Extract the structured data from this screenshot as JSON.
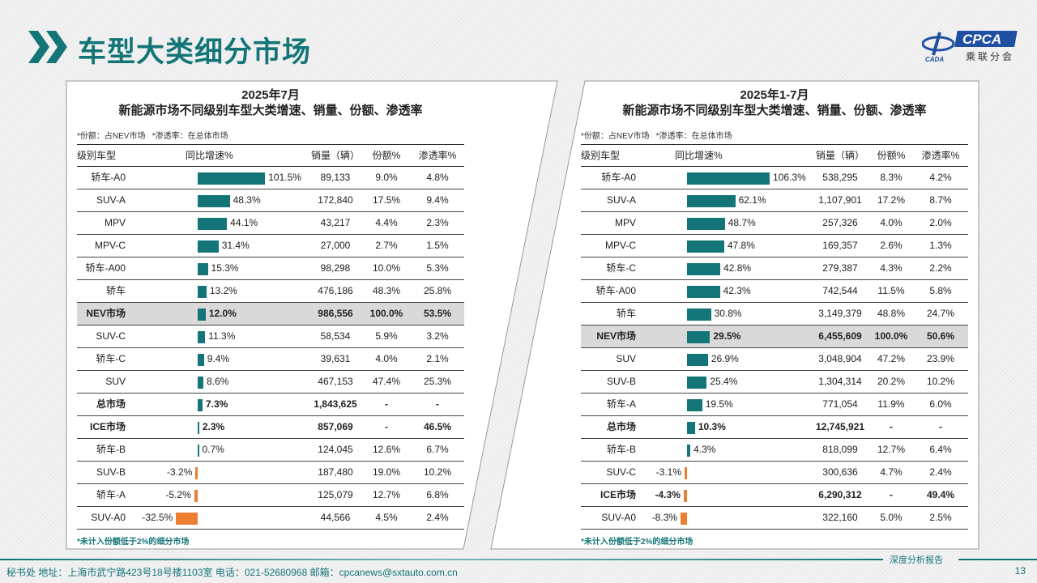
{
  "header": {
    "title": "车型大类细分市场",
    "logo_text": "CPCA",
    "logo_sub": "乘联分会",
    "logo_mark": "CADA"
  },
  "colors": {
    "accent": "#137577",
    "positive": "#137577",
    "negative": "#ed7d31",
    "highlight": "#d9d9d9"
  },
  "columns": {
    "type": "级别车型",
    "growth": "同比增速%",
    "sales": "销量（辆）",
    "share": "份额%",
    "pen": "渗透率%"
  },
  "panels": [
    {
      "title1": "2025年7月",
      "title2": "新能源市场不同级别车型大类增速、销量、份额、渗透率",
      "note": "*份额：占NEV市场   *渗透率：在总体市场",
      "footnote": "*未计入份额低于2%的细分市场",
      "rows": [
        {
          "name": "轿车-A0",
          "growth": 101.5,
          "growth_label": "101.5%",
          "sales": "89,133",
          "share": "9.0%",
          "pen": "4.8%"
        },
        {
          "name": "SUV-A",
          "growth": 48.3,
          "growth_label": "48.3%",
          "sales": "172,840",
          "share": "17.5%",
          "pen": "9.4%"
        },
        {
          "name": "MPV",
          "growth": 44.1,
          "growth_label": "44.1%",
          "sales": "43,217",
          "share": "4.4%",
          "pen": "2.3%"
        },
        {
          "name": "MPV-C",
          "growth": 31.4,
          "growth_label": "31.4%",
          "sales": "27,000",
          "share": "2.7%",
          "pen": "1.5%"
        },
        {
          "name": "轿车-A00",
          "growth": 15.3,
          "growth_label": "15.3%",
          "sales": "98,298",
          "share": "10.0%",
          "pen": "5.3%"
        },
        {
          "name": "轿车",
          "growth": 13.2,
          "growth_label": "13.2%",
          "sales": "476,186",
          "share": "48.3%",
          "pen": "25.8%"
        },
        {
          "name": "NEV市场",
          "growth": 12.0,
          "growth_label": "12.0%",
          "sales": "986,556",
          "share": "100.0%",
          "pen": "53.5%",
          "bold": true,
          "highlight": true
        },
        {
          "name": "SUV-C",
          "growth": 11.3,
          "growth_label": "11.3%",
          "sales": "58,534",
          "share": "5.9%",
          "pen": "3.2%"
        },
        {
          "name": "轿车-C",
          "growth": 9.4,
          "growth_label": "9.4%",
          "sales": "39,631",
          "share": "4.0%",
          "pen": "2.1%"
        },
        {
          "name": "SUV",
          "growth": 8.6,
          "growth_label": "8.6%",
          "sales": "467,153",
          "share": "47.4%",
          "pen": "25.3%"
        },
        {
          "name": "总市场",
          "growth": 7.3,
          "growth_label": "7.3%",
          "sales": "1,843,625",
          "share": "-",
          "pen": "-",
          "bold": true
        },
        {
          "name": "ICE市场",
          "growth": 2.3,
          "growth_label": "2.3%",
          "sales": "857,069",
          "share": "-",
          "pen": "46.5%",
          "bold": true
        },
        {
          "name": "轿车-B",
          "growth": 0.7,
          "growth_label": "0.7%",
          "sales": "124,045",
          "share": "12.6%",
          "pen": "6.7%"
        },
        {
          "name": "SUV-B",
          "growth": -3.2,
          "growth_label": "-3.2%",
          "sales": "187,480",
          "share": "19.0%",
          "pen": "10.2%"
        },
        {
          "name": "轿车-A",
          "growth": -5.2,
          "growth_label": "-5.2%",
          "sales": "125,079",
          "share": "12.7%",
          "pen": "6.8%"
        },
        {
          "name": "SUV-A0",
          "growth": -32.5,
          "growth_label": "-32.5%",
          "sales": "44,566",
          "share": "4.5%",
          "pen": "2.4%"
        }
      ]
    },
    {
      "title1": "2025年1-7月",
      "title2": "新能源市场不同级别车型大类增速、销量、份额、渗透率",
      "note": "*份额：占NEV市场   *渗透率：在总体市场",
      "footnote": "*未计入份额低于2%的细分市场",
      "rows": [
        {
          "name": "轿车-A0",
          "growth": 106.3,
          "growth_label": "106.3%",
          "sales": "538,295",
          "share": "8.3%",
          "pen": "4.2%"
        },
        {
          "name": "SUV-A",
          "growth": 62.1,
          "growth_label": "62.1%",
          "sales": "1,107,901",
          "share": "17.2%",
          "pen": "8.7%"
        },
        {
          "name": "MPV",
          "growth": 48.7,
          "growth_label": "48.7%",
          "sales": "257,326",
          "share": "4.0%",
          "pen": "2.0%"
        },
        {
          "name": "MPV-C",
          "growth": 47.8,
          "growth_label": "47.8%",
          "sales": "169,357",
          "share": "2.6%",
          "pen": "1.3%"
        },
        {
          "name": "轿车-C",
          "growth": 42.8,
          "growth_label": "42.8%",
          "sales": "279,387",
          "share": "4.3%",
          "pen": "2.2%"
        },
        {
          "name": "轿车-A00",
          "growth": 42.3,
          "growth_label": "42.3%",
          "sales": "742,544",
          "share": "11.5%",
          "pen": "5.8%"
        },
        {
          "name": "轿车",
          "growth": 30.8,
          "growth_label": "30.8%",
          "sales": "3,149,379",
          "share": "48.8%",
          "pen": "24.7%"
        },
        {
          "name": "NEV市场",
          "growth": 29.5,
          "growth_label": "29.5%",
          "sales": "6,455,609",
          "share": "100.0%",
          "pen": "50.6%",
          "bold": true,
          "highlight": true
        },
        {
          "name": "SUV",
          "growth": 26.9,
          "growth_label": "26.9%",
          "sales": "3,048,904",
          "share": "47.2%",
          "pen": "23.9%"
        },
        {
          "name": "SUV-B",
          "growth": 25.4,
          "growth_label": "25.4%",
          "sales": "1,304,314",
          "share": "20.2%",
          "pen": "10.2%"
        },
        {
          "name": "轿车-A",
          "growth": 19.5,
          "growth_label": "19.5%",
          "sales": "771,054",
          "share": "11.9%",
          "pen": "6.0%"
        },
        {
          "name": "总市场",
          "growth": 10.3,
          "growth_label": "10.3%",
          "sales": "12,745,921",
          "share": "-",
          "pen": "-",
          "bold": true
        },
        {
          "name": "轿车-B",
          "growth": 4.3,
          "growth_label": "4.3%",
          "sales": "818,099",
          "share": "12.7%",
          "pen": "6.4%"
        },
        {
          "name": "SUV-C",
          "growth": -3.1,
          "growth_label": "-3.1%",
          "sales": "300,636",
          "share": "4.7%",
          "pen": "2.4%"
        },
        {
          "name": "ICE市场",
          "growth": -4.3,
          "growth_label": "-4.3%",
          "sales": "6,290,312",
          "share": "-",
          "pen": "49.4%",
          "bold": true
        },
        {
          "name": "SUV-A0",
          "growth": -8.3,
          "growth_label": "-8.3%",
          "sales": "322,160",
          "share": "5.0%",
          "pen": "2.5%"
        }
      ]
    }
  ],
  "footer": {
    "address": "秘书处   地址：上海市武宁路423号18号楼1103室  电话：021-52680968   邮箱：cpcanews@sxtauto.com.cn",
    "tag": "深度分析报告",
    "page": "13"
  }
}
